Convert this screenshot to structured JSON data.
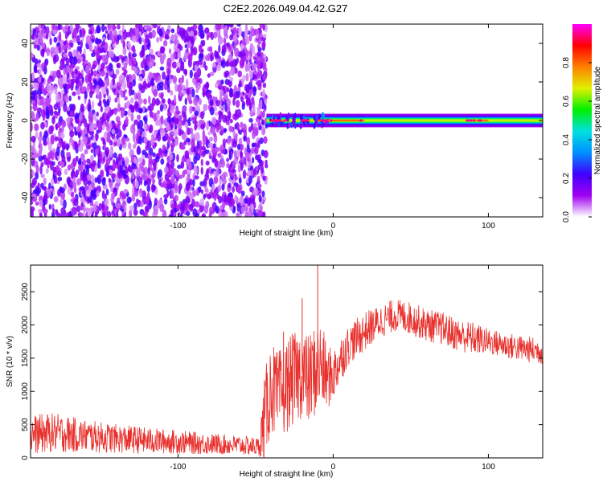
{
  "title": "C2E2.2026.049.04.42.G27",
  "chart_data": [
    {
      "type": "heatmap",
      "title": "C2E2.2026.049.04.42.G27",
      "xlabel": "Height of straight line (km)",
      "ylabel": "Frequency (Hz)",
      "xlim": [
        -195,
        135
      ],
      "ylim": [
        -50,
        50
      ],
      "xticks": [
        -100,
        0,
        100
      ],
      "xtick_labels": [
        "-100",
        "0",
        "100"
      ],
      "yticks": [
        -40,
        -20,
        0,
        20,
        40
      ],
      "ytick_labels": [
        "-40",
        "-20",
        "0",
        "20",
        "40"
      ],
      "noise_region_x": [
        -195,
        -43
      ],
      "signal_ridge": {
        "x_start": -43,
        "x_end": 135,
        "center_frequency": 0,
        "peak_segments": [
          [
            -40,
            -30
          ],
          [
            -20,
            -15
          ],
          [
            -10,
            20
          ],
          [
            85,
            100
          ]
        ]
      },
      "colorbar": {
        "label": "Normalized spectral amplitude",
        "range": [
          0,
          1
        ],
        "ticks": [
          0.0,
          0.2,
          0.4,
          0.6,
          0.8
        ],
        "tick_labels": [
          "0.0",
          "0.2",
          "0.4",
          "0.6",
          "0.8"
        ],
        "colors": [
          "#ffffff",
          "#a000f0",
          "#4000ff",
          "#0090ff",
          "#00e0e0",
          "#00f000",
          "#e0f000",
          "#ff8000",
          "#ff0000",
          "#ff00ff"
        ]
      },
      "grid": false
    },
    {
      "type": "line",
      "xlabel": "Height of straight line (km)",
      "ylabel": "SNR (10 * v/v)",
      "xlim": [
        -195,
        135
      ],
      "ylim": [
        0,
        2900
      ],
      "xticks": [
        -100,
        0,
        100
      ],
      "xtick_labels": [
        "-100",
        "0",
        "100"
      ],
      "yticks": [
        0,
        500,
        1000,
        1500,
        2000,
        2500
      ],
      "ytick_labels": [
        "0",
        "500",
        "1000",
        "1500",
        "2000",
        "2500"
      ],
      "color": "#e8302c",
      "grid": false,
      "series": [
        {
          "x": [
            -195,
            -180,
            -160,
            -140,
            -120,
            -100,
            -80,
            -60,
            -48,
            -44,
            -40,
            -36,
            -32,
            -28,
            -24,
            -20,
            -16,
            -12,
            -8,
            -4,
            0,
            5,
            10,
            20,
            30,
            40,
            50,
            60,
            70,
            80,
            90,
            100,
            110,
            120,
            135
          ],
          "y": [
            350,
            380,
            330,
            290,
            260,
            240,
            210,
            190,
            170,
            600,
            1100,
            900,
            1000,
            1150,
            1200,
            1300,
            1150,
            1300,
            1400,
            1200,
            1250,
            1500,
            1700,
            1900,
            2050,
            2150,
            2100,
            2000,
            1950,
            1850,
            1800,
            1750,
            1700,
            1650,
            1600
          ],
          "noise_amplitude": [
            300,
            300,
            250,
            220,
            200,
            180,
            160,
            150,
            140,
            700,
            700,
            700,
            700,
            700,
            700,
            700,
            700,
            700,
            700,
            500,
            400,
            350,
            300,
            300,
            250,
            250,
            250,
            250,
            250,
            250,
            250,
            200,
            200,
            200,
            200
          ]
        }
      ]
    }
  ]
}
